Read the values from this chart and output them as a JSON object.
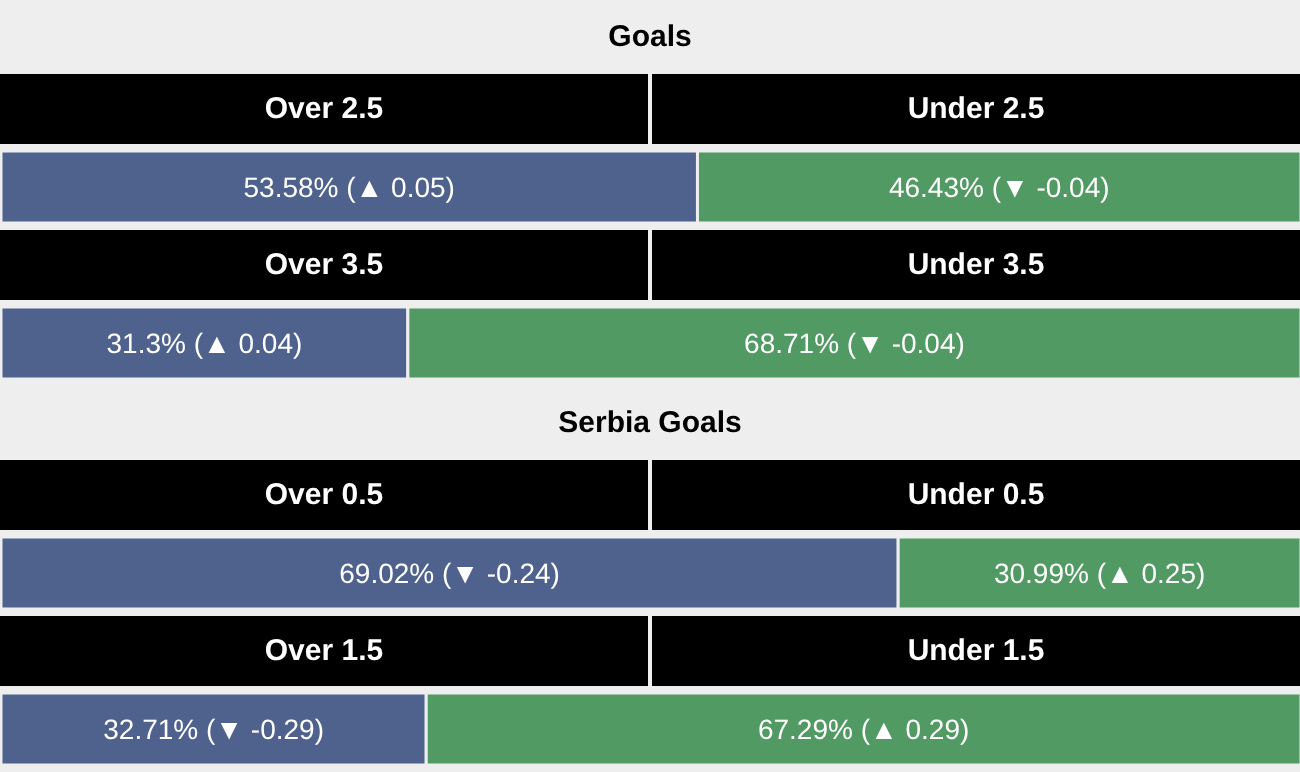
{
  "chart_data": [
    {
      "type": "bar",
      "orientation": "horizontal",
      "stacked": true,
      "title": "Goals",
      "categories": [
        null
      ],
      "series": [
        {
          "name": "Over 2.5",
          "color": "#4f628e",
          "values": [
            53.58
          ],
          "value_labels": [
            "53.58% (▲ 0.05)"
          ]
        },
        {
          "name": "Under 2.5",
          "color": "#519a63",
          "values": [
            46.43
          ],
          "value_labels": [
            "46.43% (▼ -0.04)"
          ]
        }
      ]
    },
    {
      "type": "bar",
      "orientation": "horizontal",
      "stacked": true,
      "categories": [
        null
      ],
      "series": [
        {
          "name": "Over 3.5",
          "color": "#4f628e",
          "values": [
            31.3
          ],
          "value_labels": [
            "31.3% (▲ 0.04)"
          ]
        },
        {
          "name": "Under 3.5",
          "color": "#519a63",
          "values": [
            68.71
          ],
          "value_labels": [
            "68.71% (▼ -0.04)"
          ]
        }
      ]
    },
    {
      "type": "bar",
      "orientation": "horizontal",
      "stacked": true,
      "title": "Serbia Goals",
      "categories": [
        null
      ],
      "series": [
        {
          "name": "Over 0.5",
          "color": "#4f628e",
          "values": [
            69.02
          ],
          "value_labels": [
            "69.02% (▼ -0.24)"
          ]
        },
        {
          "name": "Under 0.5",
          "color": "#519a63",
          "values": [
            30.99
          ],
          "value_labels": [
            "30.99% (▲ 0.25)"
          ]
        }
      ]
    },
    {
      "type": "bar",
      "orientation": "horizontal",
      "stacked": true,
      "categories": [
        null
      ],
      "series": [
        {
          "name": "Over 1.5",
          "color": "#4f628e",
          "values": [
            32.71
          ],
          "value_labels": [
            "32.71% (▼ -0.29)"
          ]
        },
        {
          "name": "Under 1.5",
          "color": "#519a63",
          "values": [
            67.29
          ],
          "value_labels": [
            "67.29% (▲ 0.29)"
          ]
        }
      ]
    }
  ]
}
